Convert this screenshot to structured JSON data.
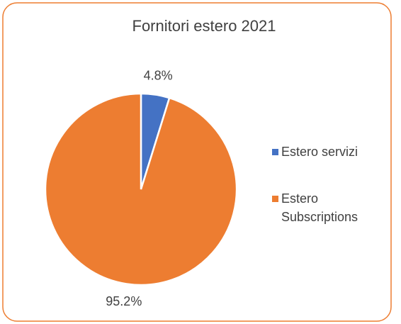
{
  "chart_data": {
    "type": "pie",
    "title": "Fornitori estero 2021",
    "categories": [
      "Estero servizi",
      "Estero Subscriptions"
    ],
    "values": [
      4.8,
      95.2
    ],
    "value_labels": [
      "4.8%",
      "95.2%"
    ],
    "colors": [
      "#4472C4",
      "#ED7D31"
    ],
    "legend": "right"
  }
}
